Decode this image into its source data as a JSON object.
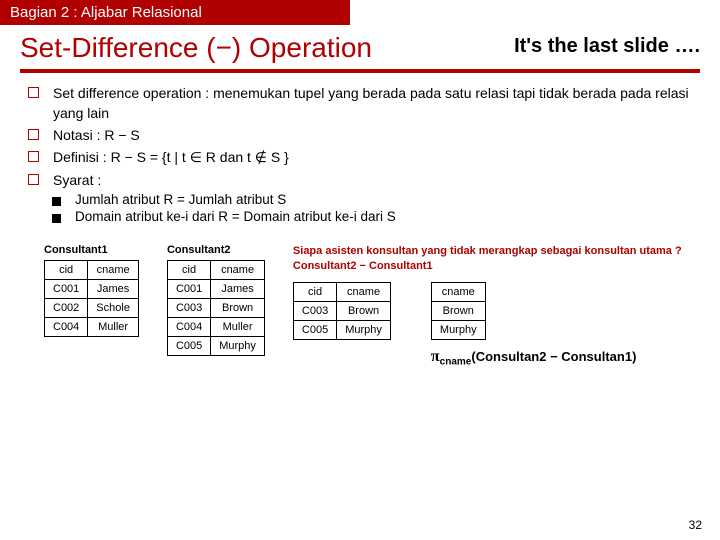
{
  "header": {
    "section": "Bagian 2 : Aljabar Relasional"
  },
  "title": "Set-Difference (−) Operation",
  "note": "It's the last slide ….",
  "bullets": [
    "Set difference operation : menemukan tupel yang berada pada satu relasi tapi tidak berada pada relasi yang lain",
    "Notasi : R − S",
    "Definisi : R − S = {t | t ∈ R dan t ∉ S }",
    "Syarat :"
  ],
  "subbullets": [
    "Jumlah atribut R = Jumlah atribut S",
    "Domain atribut ke-i dari R = Domain atribut ke-i dari S"
  ],
  "tables": {
    "c1": {
      "caption": "Consultant1",
      "cols": [
        "cid",
        "cname"
      ],
      "rows": [
        [
          "C001",
          "James"
        ],
        [
          "C002",
          "Schole"
        ],
        [
          "C004",
          "Muller"
        ]
      ]
    },
    "c2": {
      "caption": "Consultant2",
      "cols": [
        "cid",
        "cname"
      ],
      "rows": [
        [
          "C001",
          "James"
        ],
        [
          "C003",
          "Brown"
        ],
        [
          "C004",
          "Muller"
        ],
        [
          "C005",
          "Murphy"
        ]
      ]
    }
  },
  "question": {
    "line1": "Siapa asisten konsultan yang tidak merangkap sebagai konsultan utama ?",
    "line2": "Consultant2 − Consultant1"
  },
  "result1": {
    "cols": [
      "cid",
      "cname"
    ],
    "rows": [
      [
        "C003",
        "Brown"
      ],
      [
        "C005",
        "Murphy"
      ]
    ]
  },
  "result2": {
    "cols": [
      "cname"
    ],
    "rows": [
      [
        "Brown"
      ],
      [
        "Murphy"
      ]
    ]
  },
  "projection": {
    "sub": "cname",
    "expr": "(Consultan2 − Consultan1)"
  },
  "pageNum": "32"
}
